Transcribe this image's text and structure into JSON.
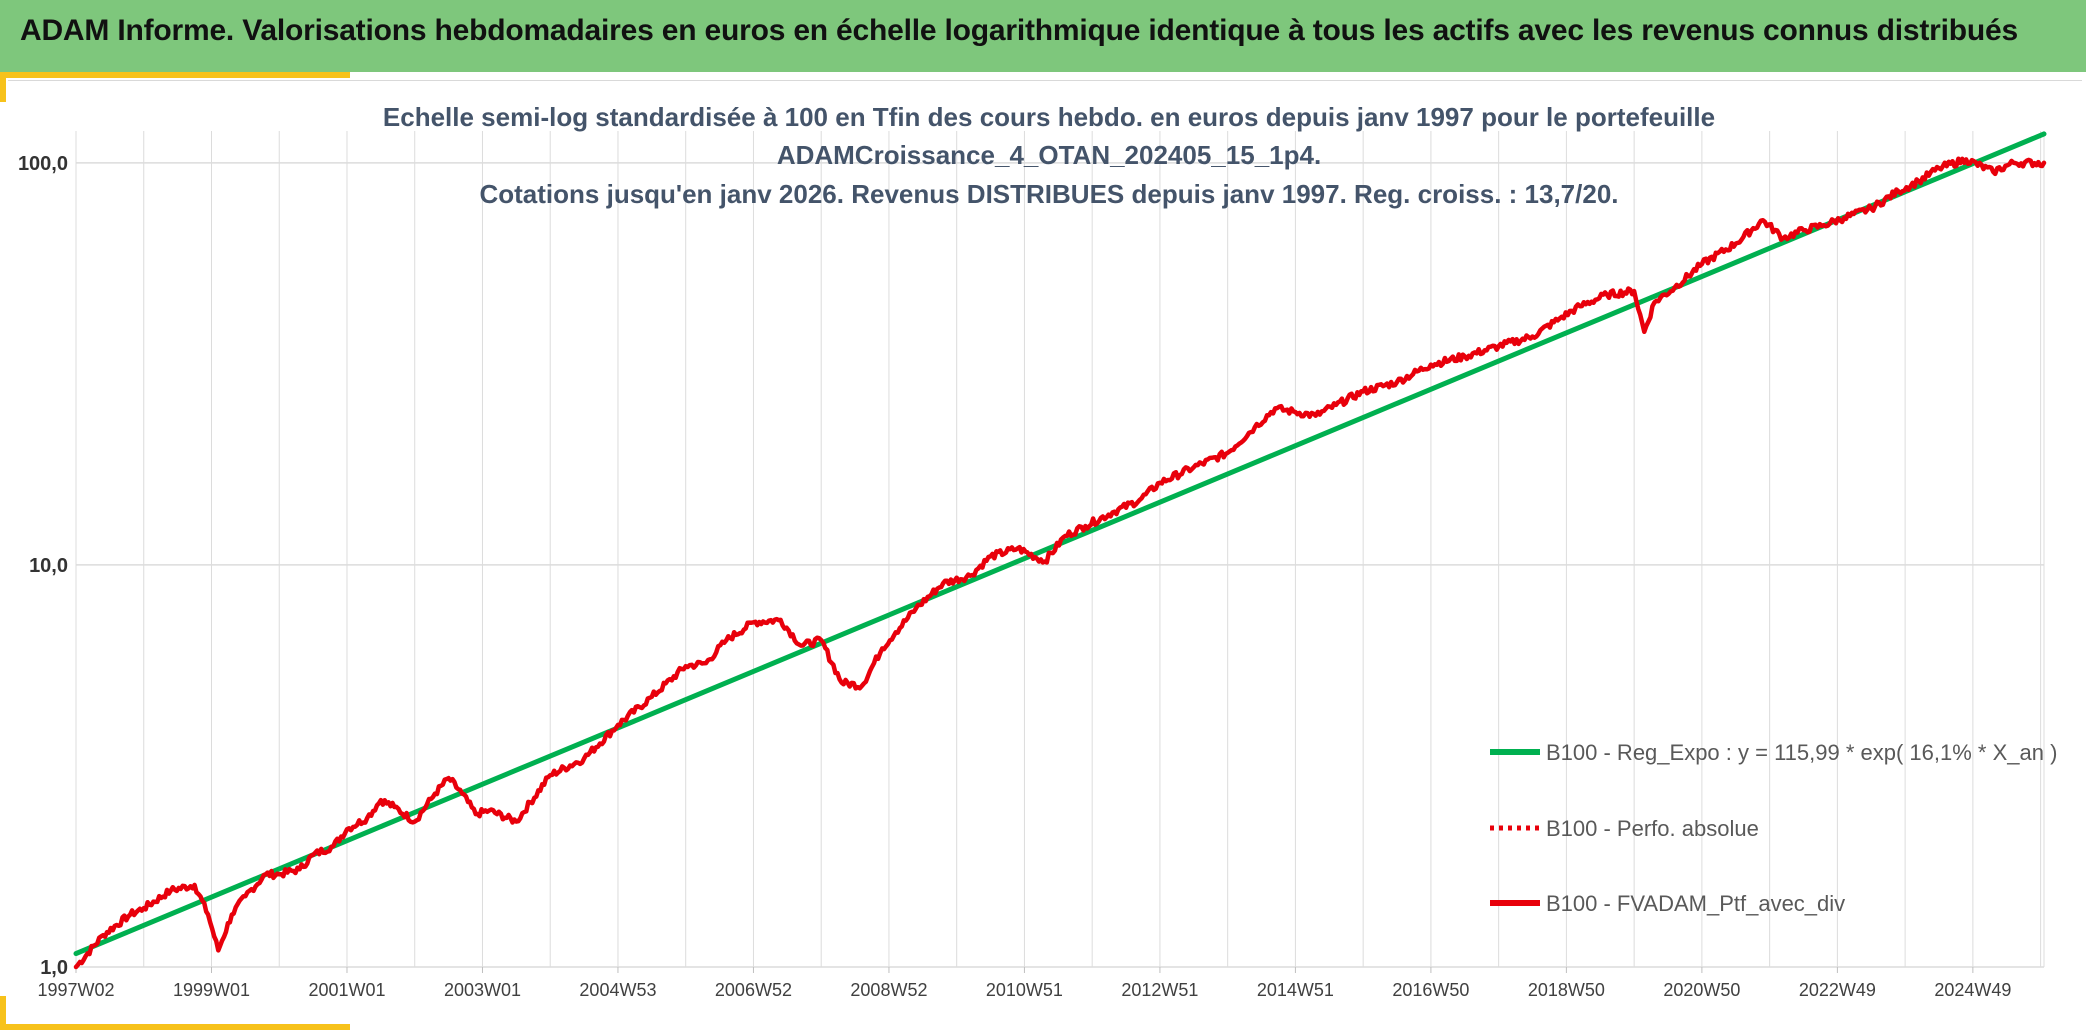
{
  "header": {
    "title": "ADAM Informe. Valorisations hebdomadaires en euros en échelle logarithmique identique à tous les actifs avec les revenus connus distribués"
  },
  "colors": {
    "header_bg": "#7ec77c",
    "accent": "#f7c21b",
    "series_red": "#e8000b",
    "series_green": "#00b050",
    "grid": "#dcdcdc"
  },
  "chart_data": {
    "type": "line",
    "title_lines": [
      "Echelle semi-log standardisée à 100 en Tfin des cours hebdo. en euros depuis janv 1997 pour le portefeuille",
      "ADAMCroissance_4_OTAN_202405_15_1p4.",
      "Cotations jusqu'en janv 2026. Revenus DISTRIBUES depuis janv 1997. Reg. croiss. : 13,7/20."
    ],
    "y_scale": "log",
    "ylim": [
      1,
      120
    ],
    "y_ticks": [
      {
        "value": 1,
        "label": "1,0"
      },
      {
        "value": 10,
        "label": "10,0"
      },
      {
        "value": 100,
        "label": "100,0"
      }
    ],
    "x_range": [
      1997.0,
      2026.05
    ],
    "x_ticks": [
      {
        "year": 1997.0,
        "label": "1997W02"
      },
      {
        "year": 1999.0,
        "label": "1999W01"
      },
      {
        "year": 2001.0,
        "label": "2001W01"
      },
      {
        "year": 2003.0,
        "label": "2003W01"
      },
      {
        "year": 2005.0,
        "label": "2004W53"
      },
      {
        "year": 2007.0,
        "label": "2006W52"
      },
      {
        "year": 2009.0,
        "label": "2008W52"
      },
      {
        "year": 2011.0,
        "label": "2010W51"
      },
      {
        "year": 2013.0,
        "label": "2012W51"
      },
      {
        "year": 2015.0,
        "label": "2014W51"
      },
      {
        "year": 2017.0,
        "label": "2016W50"
      },
      {
        "year": 2019.0,
        "label": "2018W50"
      },
      {
        "year": 2021.0,
        "label": "2020W50"
      },
      {
        "year": 2023.0,
        "label": "2022W49"
      },
      {
        "year": 2025.0,
        "label": "2024W49"
      }
    ],
    "grid": true,
    "legend_position": "bottom-right",
    "series": [
      {
        "name": "B100 - Reg_Expo : y = 115,99 * exp( 16,1% *  X_an )",
        "color": "#00b050",
        "style": "solid",
        "x": [
          1997.0,
          2026.05
        ],
        "y": [
          1.08,
          118
        ]
      },
      {
        "name": "B100 - Perfo. absolue",
        "color": "#e8000b",
        "style": "dotted",
        "x": [],
        "y": []
      },
      {
        "name": "B100 - FVADAM_Ptf_avec_div",
        "color": "#e8000b",
        "style": "solid",
        "x": [
          1997.0,
          1997.4,
          1997.8,
          1998.0,
          1998.4,
          1998.75,
          1998.95,
          1999.1,
          1999.3,
          1999.5,
          1999.8,
          2000.0,
          2000.3,
          2000.5,
          2000.8,
          2001.0,
          2001.3,
          2001.5,
          2001.7,
          2002.0,
          2002.3,
          2002.5,
          2002.7,
          2002.9,
          2003.1,
          2003.5,
          2004.0,
          2004.5,
          2005.0,
          2005.5,
          2006.0,
          2006.3,
          2006.6,
          2007.0,
          2007.4,
          2007.7,
          2008.0,
          2008.3,
          2008.6,
          2008.9,
          2009.1,
          2009.4,
          2009.8,
          2010.2,
          2010.5,
          2010.9,
          2011.3,
          2011.6,
          2011.9,
          2012.3,
          2012.7,
          2013.0,
          2013.5,
          2014.0,
          2014.4,
          2014.7,
          2015.0,
          2015.3,
          2015.6,
          2016.0,
          2016.5,
          2017.0,
          2017.5,
          2018.0,
          2018.5,
          2018.9,
          2019.2,
          2019.6,
          2020.0,
          2020.15,
          2020.3,
          2020.6,
          2021.0,
          2021.5,
          2021.9,
          2022.2,
          2022.5,
          2022.8,
          2023.1,
          2023.5,
          2023.9,
          2024.2,
          2024.5,
          2024.9,
          2025.3,
          2025.6,
          2026.05
        ],
        "y": [
          1.0,
          1.2,
          1.35,
          1.4,
          1.55,
          1.6,
          1.35,
          1.1,
          1.35,
          1.5,
          1.7,
          1.7,
          1.75,
          1.9,
          2.0,
          2.2,
          2.35,
          2.6,
          2.5,
          2.3,
          2.7,
          2.95,
          2.7,
          2.4,
          2.45,
          2.3,
          3.0,
          3.3,
          4.0,
          4.7,
          5.6,
          5.7,
          6.5,
          7.2,
          7.3,
          6.3,
          6.5,
          5.1,
          5.0,
          6.2,
          6.8,
          7.8,
          9.0,
          9.4,
          10.5,
          11.0,
          10.2,
          11.8,
          12.5,
          13.5,
          14.5,
          16.0,
          17.5,
          19.0,
          22.0,
          24.5,
          24.0,
          23.5,
          25.0,
          27.0,
          28.5,
          31.5,
          33.0,
          35.0,
          37.0,
          41.0,
          44.0,
          47.0,
          48.0,
          38.0,
          45.0,
          49.0,
          56.0,
          63.0,
          72.0,
          65.0,
          68.0,
          70.0,
          73.0,
          77.0,
          85.0,
          90.0,
          97.0,
          102.0,
          95.0,
          100.0,
          100.0
        ]
      }
    ]
  }
}
